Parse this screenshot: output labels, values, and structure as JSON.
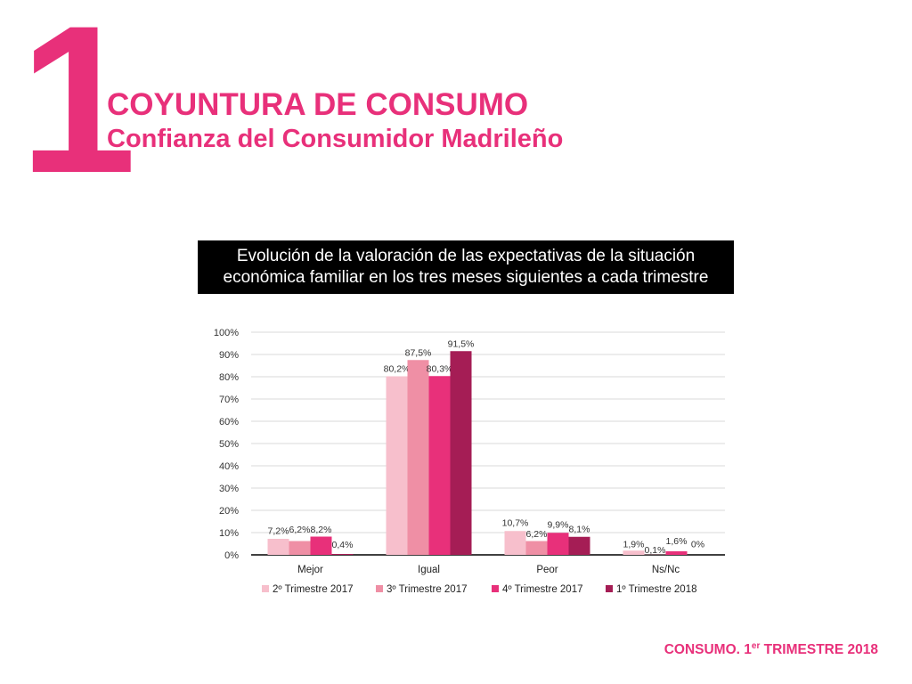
{
  "header": {
    "section_number": "1",
    "title": "COYUNTURA DE CONSUMO",
    "subtitle": "Confianza del Consumidor Madrileño"
  },
  "banner": {
    "line1": "Evolución de la valoración de las expectativas de la situación",
    "line2": "económica familiar en los tres meses siguientes a cada trimestre"
  },
  "footer": {
    "text_before": "CONSUMO. 1",
    "superscript": "er",
    "text_after": " TRIMESTRE 2018"
  },
  "colors": {
    "accent": "#e8307a",
    "title": "#e8307a",
    "banner_bg": "#000000",
    "banner_text": "#ffffff"
  },
  "chart_data": {
    "type": "bar",
    "categories": [
      "Mejor",
      "Igual",
      "Peor",
      "Ns/Nc"
    ],
    "series": [
      {
        "name": "2º Trimestre 2017",
        "color": "#f7bfcc",
        "values": [
          7.2,
          80.2,
          10.7,
          1.9
        ],
        "labels": [
          "7,2%",
          "80,2%",
          "10,7%",
          "1,9%"
        ]
      },
      {
        "name": "3º Trimestre 2017",
        "color": "#ef8fa5",
        "values": [
          6.2,
          87.5,
          6.2,
          0.1
        ],
        "labels": [
          "6,2%",
          "87,5%",
          "6,2%",
          "0,1%"
        ]
      },
      {
        "name": "4º Trimestre 2017",
        "color": "#e8307a",
        "values": [
          8.2,
          80.3,
          9.9,
          1.6
        ],
        "labels": [
          "8,2%",
          "80,3%",
          "9,9%",
          "1,6%"
        ]
      },
      {
        "name": "1º Trimestre 2018",
        "color": "#a51d55",
        "values": [
          0.4,
          91.5,
          8.1,
          0.0
        ],
        "labels": [
          "0,4%",
          "91,5%",
          "8,1%",
          "0%"
        ]
      }
    ],
    "yticks": [
      "0%",
      "10%",
      "20%",
      "30%",
      "40%",
      "50%",
      "60%",
      "70%",
      "80%",
      "90%",
      "100%"
    ],
    "ylim": [
      0,
      100
    ],
    "grid": true,
    "legend": "bottom"
  }
}
